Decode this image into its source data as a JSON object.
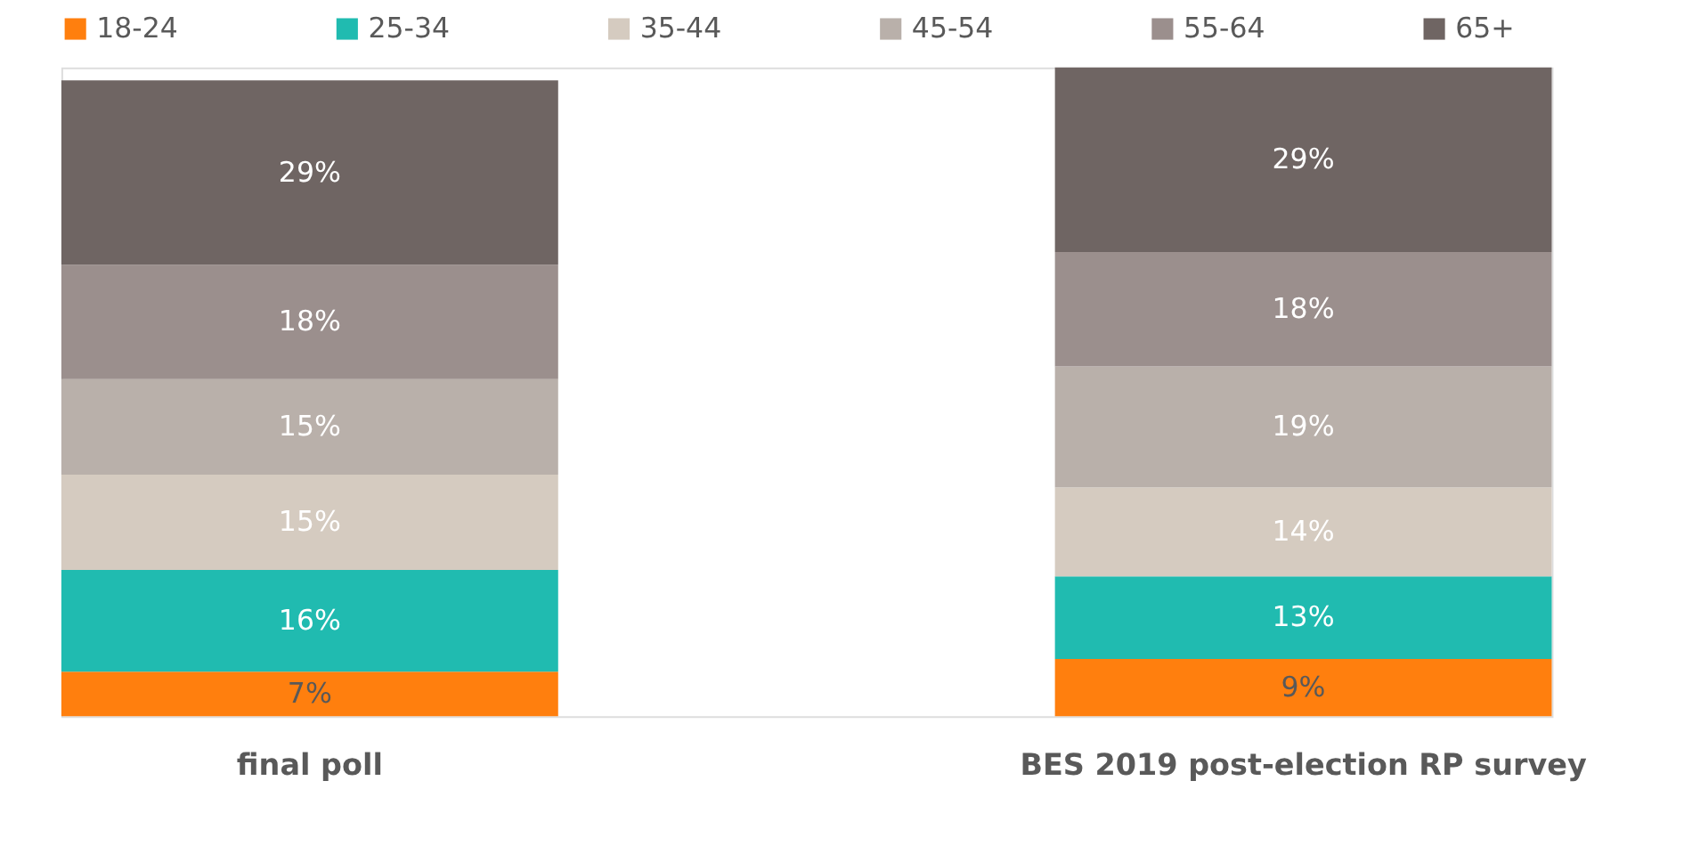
{
  "chart_data": {
    "type": "bar",
    "stacked": true,
    "legend": "top",
    "grid": false,
    "categories": [
      "final poll",
      "BES 2019 post-election RP survey"
    ],
    "series": [
      {
        "name": "18-24",
        "color": "#ff7f0e",
        "values": [
          7,
          9
        ],
        "value_labels": [
          "7%",
          "9%"
        ]
      },
      {
        "name": "25-34",
        "color": "#20bbb0",
        "values": [
          16,
          13
        ],
        "value_labels": [
          "16%",
          "13%"
        ]
      },
      {
        "name": "35-44",
        "color": "#d5cbc0",
        "values": [
          15,
          14
        ],
        "value_labels": [
          "15%",
          "14%"
        ]
      },
      {
        "name": "45-54",
        "color": "#b9b0aa",
        "values": [
          15,
          19
        ],
        "value_labels": [
          "15%",
          "19%"
        ]
      },
      {
        "name": "55-64",
        "color": "#9b8f8d",
        "values": [
          18,
          18
        ],
        "value_labels": [
          "18%",
          "18%"
        ]
      },
      {
        "name": "65+",
        "color": "#6f6563",
        "values": [
          29,
          29
        ],
        "value_labels": [
          "29%",
          "29%"
        ]
      }
    ]
  }
}
